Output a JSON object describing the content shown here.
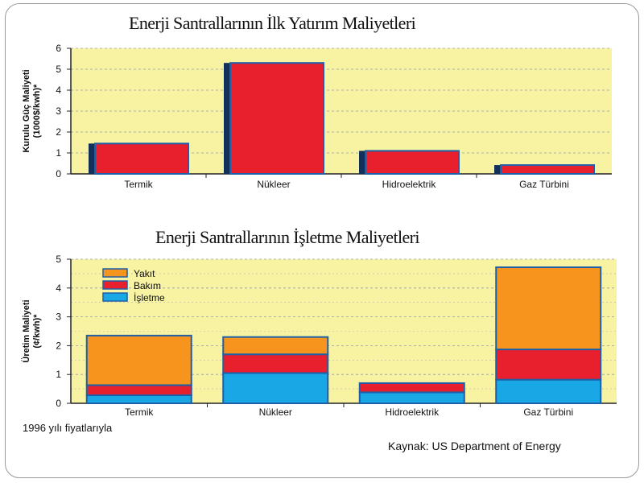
{
  "chart_data": [
    {
      "type": "bar",
      "title": "Enerji Santrallarının İlk Yatırım Maliyetleri",
      "ylabel_lines": [
        "Kurulu Güç Maliyeti",
        "(1000$/kwh)*"
      ],
      "categories": [
        "Termik",
        "Nükleer",
        "Hidroelektrik",
        "Gaz Türbini"
      ],
      "values": [
        1.45,
        5.3,
        1.1,
        0.42
      ],
      "ylim": [
        0,
        6
      ],
      "yticks": [
        "0",
        "1",
        "2",
        "3",
        "4",
        "5",
        "6"
      ],
      "grid": true,
      "colors": {
        "plot_bg": "#f7f3a3",
        "bar": "#e8202e",
        "bar_edge": "#1d5fa8",
        "bar_side": "#13305a"
      }
    },
    {
      "type": "bar",
      "stacked": true,
      "title": "Enerji  Santrallarının İşletme Maliyetleri",
      "ylabel_lines": [
        "Üretim Maliyeti",
        "(¢/kwh)*"
      ],
      "categories": [
        "Termik",
        "Nükleer",
        "Hidroelektrik",
        "Gaz Türbini"
      ],
      "series": [
        {
          "name": "İşletme",
          "values": [
            0.28,
            1.05,
            0.38,
            0.82
          ],
          "color": "#1aa7e6"
        },
        {
          "name": "Bakım",
          "values": [
            0.35,
            0.65,
            0.32,
            1.05
          ],
          "color": "#e8202e"
        },
        {
          "name": "Yakıt",
          "values": [
            1.72,
            0.6,
            0.0,
            2.85
          ],
          "color": "#f7941d"
        }
      ],
      "legend_order": [
        "Yakıt",
        "Bakım",
        "İşletme"
      ],
      "legend_position": "top-left",
      "ylim": [
        0,
        5
      ],
      "yticks": [
        "0",
        "1",
        "2",
        "3",
        "4",
        "5"
      ],
      "grid": true,
      "colors": {
        "plot_bg": "#f7f3a3",
        "bar_edge": "#1d5fa8"
      }
    }
  ],
  "notes": {
    "price_year": "1996 yılı fiyatlarıyla",
    "source": "Kaynak: US Department of Energy"
  }
}
